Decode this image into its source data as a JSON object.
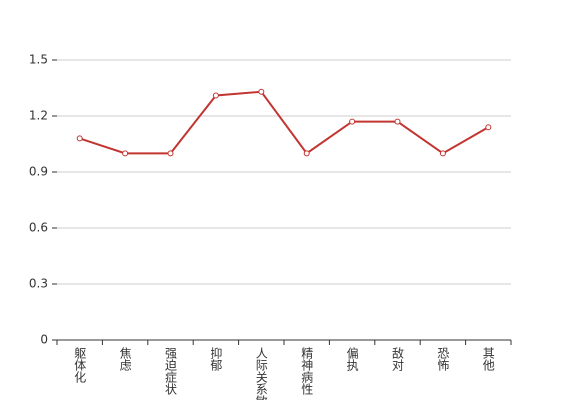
{
  "chart_data": {
    "type": "line",
    "categories": [
      "躯体化",
      "焦虑",
      "强迫症状",
      "抑郁",
      "人际关系敏感",
      "精神病性",
      "偏执",
      "敌对",
      "恐怖",
      "其他"
    ],
    "values": [
      1.08,
      1.0,
      1.0,
      1.31,
      1.33,
      1.0,
      1.17,
      1.17,
      1.0,
      1.14
    ],
    "color": "#c23531",
    "ylim": [
      0,
      1.5
    ],
    "yticks": [
      0,
      0.3,
      0.6,
      0.9,
      1.2,
      1.5
    ],
    "grid": true
  }
}
